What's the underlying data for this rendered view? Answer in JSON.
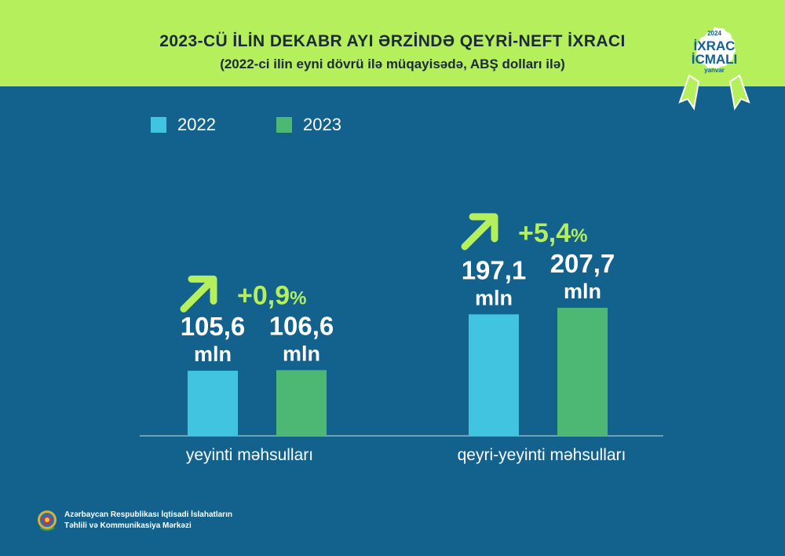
{
  "header": {
    "title": "2023-CÜ İLİN DEKABR AYI ƏRZİNDƏ QEYRİ-NEFT İXRACI",
    "subtitle": "(2022-ci ilin eyni dövrü ilə müqayisədə, ABŞ dolları ilə)"
  },
  "badge": {
    "year": "2024",
    "line1": "İXRAC",
    "line2": "İCMALI",
    "month": "yanvar"
  },
  "colors": {
    "background": "#12628d",
    "header": "#b5ef5c",
    "series_2022": "#41c4e0",
    "series_2023": "#4cb873",
    "accent": "#b5ef5c"
  },
  "chart_data": {
    "type": "bar",
    "categories": [
      "yeyinti məhsulları",
      "qeyri-yeyinti məhsulları"
    ],
    "series": [
      {
        "name": "2022",
        "values": [
          105.6,
          197.1
        ],
        "labels": [
          "105,6",
          "197,1"
        ]
      },
      {
        "name": "2023",
        "values": [
          106.6,
          207.7
        ],
        "labels": [
          "106,6",
          "207,7"
        ]
      }
    ],
    "unit": "mln",
    "growth": [
      {
        "number": "+0,9",
        "suffix": "%"
      },
      {
        "number": "+5,4",
        "suffix": "%"
      }
    ],
    "legend": "top-left",
    "grid": false
  },
  "footer": {
    "line1": "Azərbaycan Respublikası İqtisadi İslahatların",
    "line2": "Təhlili və Kommunikasiya Mərkəzi"
  }
}
